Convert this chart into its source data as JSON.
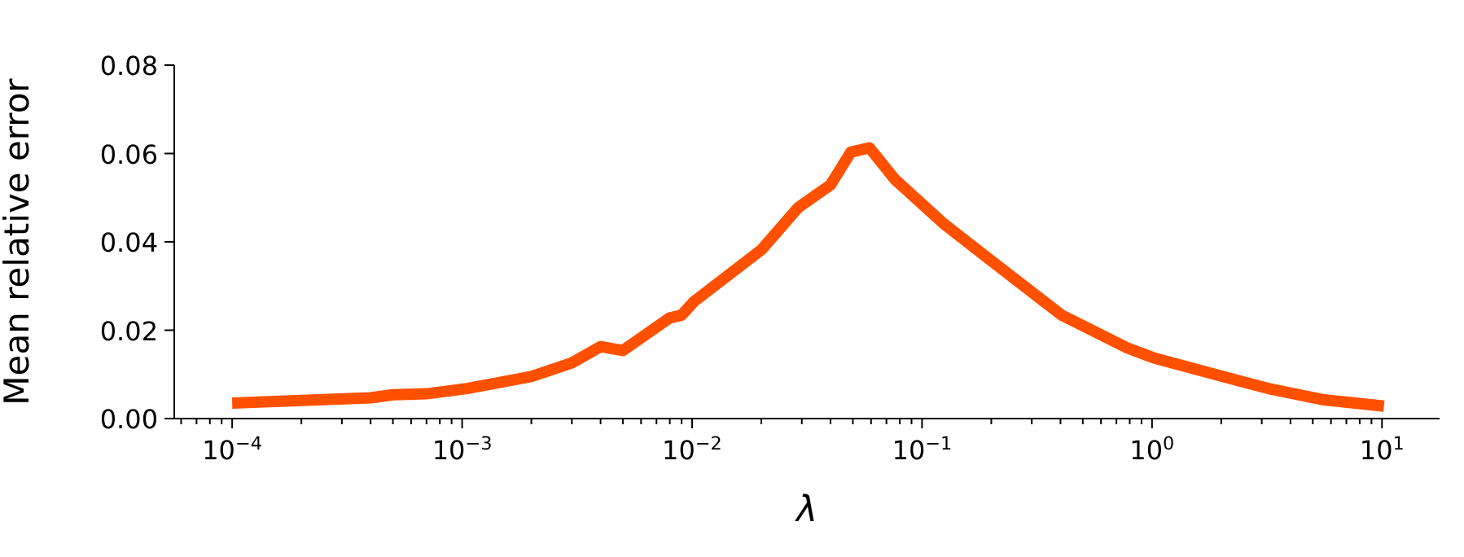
{
  "chart_data": {
    "type": "line",
    "xlabel": "λ",
    "ylabel": "Mean relative error",
    "log": "x",
    "grid": false,
    "legend": false,
    "marker": "none",
    "line_style": "solid",
    "x": [
      0.0001,
      0.0004,
      0.0005,
      0.0007,
      0.00105,
      0.002,
      0.003,
      0.004,
      0.005,
      0.008,
      0.009,
      0.0102,
      0.02,
      0.029,
      0.04,
      0.049,
      0.059,
      0.076,
      0.123,
      0.2,
      0.405,
      0.78,
      1.01,
      1.85,
      3.2,
      5.5,
      10.2
    ],
    "series": [
      {
        "color": "#ff5000",
        "values": [
          0.0035,
          0.0047,
          0.0054,
          0.0056,
          0.0068,
          0.0095,
          0.0126,
          0.0163,
          0.0154,
          0.0228,
          0.0234,
          0.0265,
          0.0382,
          0.0478,
          0.0529,
          0.0603,
          0.0613,
          0.0542,
          0.0443,
          0.0357,
          0.0234,
          0.016,
          0.0138,
          0.0101,
          0.0068,
          0.0043,
          0.0028
        ]
      }
    ],
    "xlim": [
      5.6e-05,
      17.8
    ],
    "xticks": [
      {
        "value": 6e-05,
        "label": null
      },
      {
        "value": 7e-05,
        "label": null
      },
      {
        "value": 8e-05,
        "label": null
      },
      {
        "value": 9e-05,
        "label": null
      },
      {
        "value": 0.0001,
        "label": "10$^{−4}$"
      },
      {
        "value": 0.0002,
        "label": null
      },
      {
        "value": 0.0003,
        "label": null
      },
      {
        "value": 0.0004,
        "label": null
      },
      {
        "value": 0.0005,
        "label": null
      },
      {
        "value": 0.0006,
        "label": null
      },
      {
        "value": 0.0007,
        "label": null
      },
      {
        "value": 0.0008,
        "label": null
      },
      {
        "value": 0.0009,
        "label": null
      },
      {
        "value": 0.001,
        "label": "10$^{−3}$"
      },
      {
        "value": 0.002,
        "label": null
      },
      {
        "value": 0.003,
        "label": null
      },
      {
        "value": 0.004,
        "label": null
      },
      {
        "value": 0.005,
        "label": null
      },
      {
        "value": 0.006,
        "label": null
      },
      {
        "value": 0.007,
        "label": null
      },
      {
        "value": 0.008,
        "label": null
      },
      {
        "value": 0.009,
        "label": null
      },
      {
        "value": 0.01,
        "label": "10$^{−2}$"
      },
      {
        "value": 0.02,
        "label": null
      },
      {
        "value": 0.03,
        "label": null
      },
      {
        "value": 0.04,
        "label": null
      },
      {
        "value": 0.05,
        "label": null
      },
      {
        "value": 0.06,
        "label": null
      },
      {
        "value": 0.07,
        "label": null
      },
      {
        "value": 0.08,
        "label": null
      },
      {
        "value": 0.09,
        "label": null
      },
      {
        "value": 0.1,
        "label": "10$^{−1}$"
      },
      {
        "value": 0.2,
        "label": null
      },
      {
        "value": 0.3,
        "label": null
      },
      {
        "value": 0.4,
        "label": null
      },
      {
        "value": 0.5,
        "label": null
      },
      {
        "value": 0.6,
        "label": null
      },
      {
        "value": 0.7,
        "label": null
      },
      {
        "value": 0.8,
        "label": null
      },
      {
        "value": 0.9,
        "label": null
      },
      {
        "value": 1,
        "label": "10$^{0}$"
      },
      {
        "value": 2,
        "label": null
      },
      {
        "value": 3,
        "label": null
      },
      {
        "value": 4,
        "label": null
      },
      {
        "value": 5,
        "label": null
      },
      {
        "value": 6,
        "label": null
      },
      {
        "value": 7,
        "label": null
      },
      {
        "value": 8,
        "label": null
      },
      {
        "value": 9,
        "label": null
      },
      {
        "value": 10,
        "label": "10$^{1}$"
      }
    ],
    "ylim": [
      0,
      0.08
    ],
    "yticks": [
      {
        "value": 0,
        "label": "0.00"
      },
      {
        "value": 0.02,
        "label": "0.02"
      },
      {
        "value": 0.04,
        "label": "0.04"
      },
      {
        "value": 0.06,
        "label": "0.06"
      },
      {
        "value": 0.08,
        "label": "0.08"
      }
    ]
  }
}
